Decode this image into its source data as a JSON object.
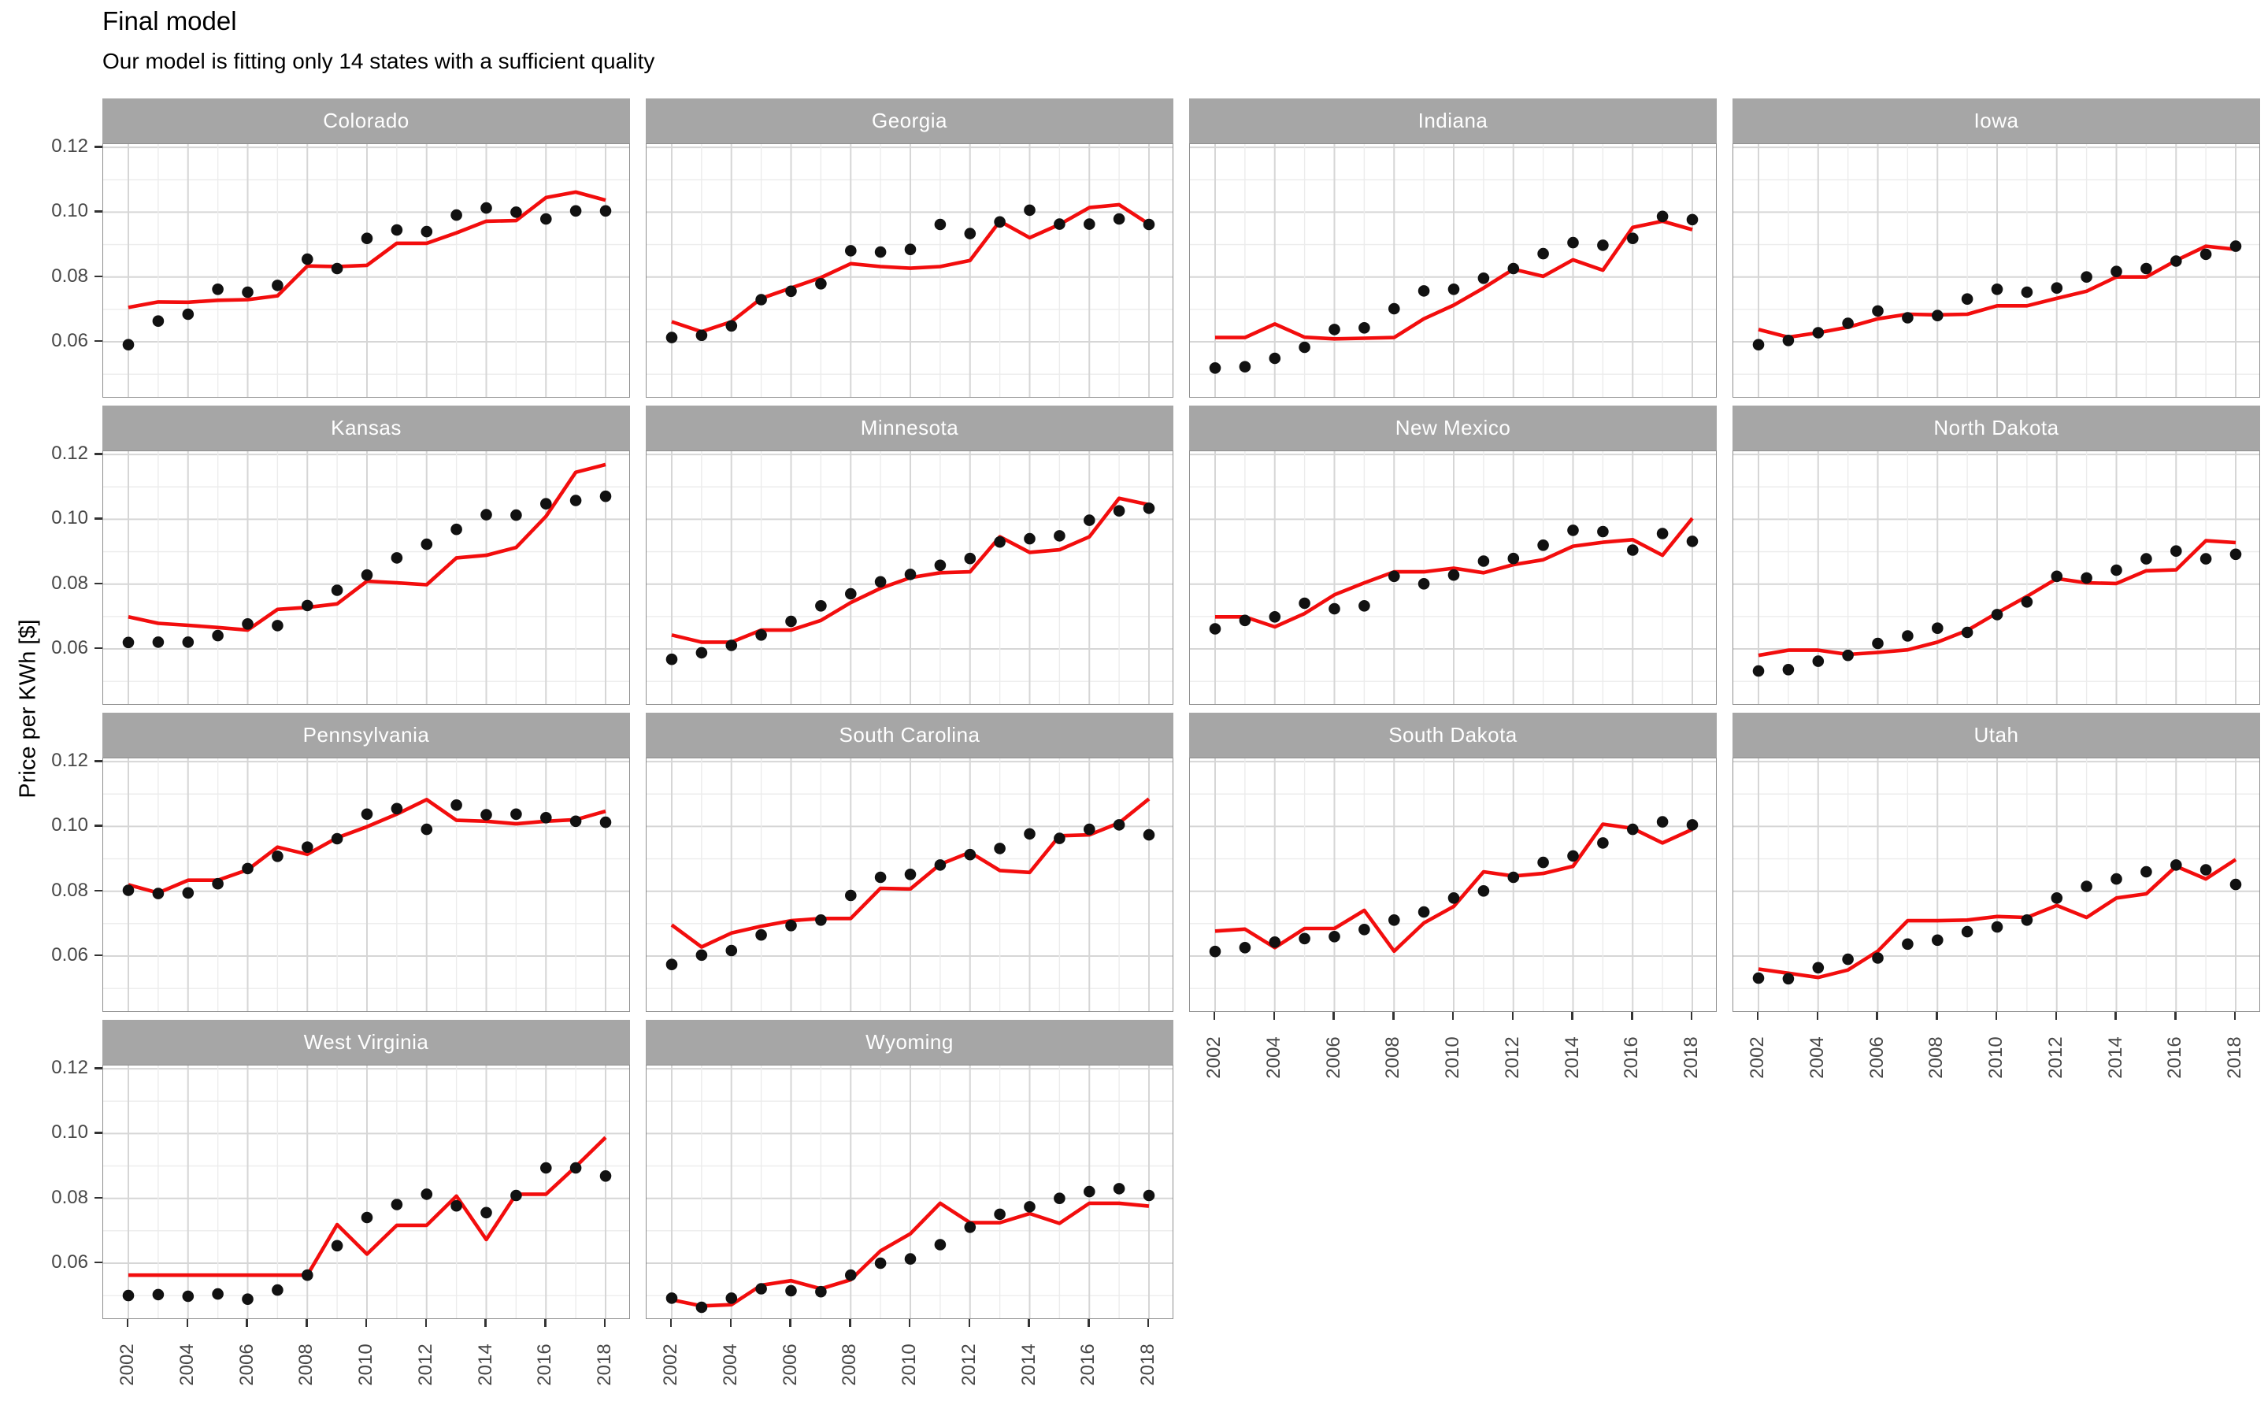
{
  "header": {
    "title": "Final model",
    "subtitle": "Our model is fitting only 14 states with a sufficient quality"
  },
  "axes": {
    "y_title": "Price per KWh [$]",
    "y_ticks": [
      {
        "label": "0.12",
        "value": 0.12
      },
      {
        "label": "0.10",
        "value": 0.1
      },
      {
        "label": "0.08",
        "value": 0.08
      },
      {
        "label": "0.06",
        "value": 0.06
      }
    ],
    "x_ticks": [
      {
        "label": "2002",
        "value": 2002
      },
      {
        "label": "2004",
        "value": 2004
      },
      {
        "label": "2006",
        "value": 2006
      },
      {
        "label": "2008",
        "value": 2008
      },
      {
        "label": "2010",
        "value": 2010
      },
      {
        "label": "2012",
        "value": 2012
      },
      {
        "label": "2014",
        "value": 2014
      },
      {
        "label": "2016",
        "value": 2016
      },
      {
        "label": "2018",
        "value": 2018
      }
    ],
    "y_range": [
      0.0425,
      0.121
    ],
    "x_range": [
      2002,
      2018
    ]
  },
  "colors": {
    "model_line": "#f20d0d",
    "observed_point": "#111111",
    "strip_bg": "#a6a6a6",
    "strip_text": "#ffffff",
    "grid_major": "#d6d6d6",
    "grid_minor": "#ececec",
    "panel_border": "#8f8f8f",
    "tick_mark": "#333333",
    "tick_text": "#474747"
  },
  "chart_data": {
    "type": "line",
    "title": "Final model",
    "subtitle": "Our model is fitting only 14 states with a sufficient quality",
    "ylabel": "Price per KWh [$]",
    "xlabel": "",
    "grid": true,
    "legend_position": "none",
    "ylim": [
      0.0425,
      0.121
    ],
    "x": [
      2002,
      2003,
      2004,
      2005,
      2006,
      2007,
      2008,
      2009,
      2010,
      2011,
      2012,
      2013,
      2014,
      2015,
      2016,
      2017,
      2018
    ],
    "series_meta": [
      {
        "name": "observed price",
        "mark": "point",
        "color": "#111111"
      },
      {
        "name": "model fit",
        "mark": "line",
        "color": "#f20d0d"
      }
    ],
    "facets": [
      {
        "state": "Colorado",
        "observed": [
          0.0591,
          0.0664,
          0.0685,
          0.0762,
          0.0753,
          0.0774,
          0.0855,
          0.0826,
          0.0919,
          0.0945,
          0.094,
          0.0991,
          0.1013,
          0.1,
          0.0979,
          0.1004,
          0.1004
        ],
        "fitted": [
          0.0706,
          0.0723,
          0.0722,
          0.0728,
          0.073,
          0.0742,
          0.0834,
          0.0832,
          0.0836,
          0.0904,
          0.0904,
          0.0936,
          0.0972,
          0.0974,
          0.1045,
          0.1062,
          0.1037
        ]
      },
      {
        "state": "Georgia",
        "observed": [
          0.0613,
          0.062,
          0.0649,
          0.073,
          0.0756,
          0.0779,
          0.0881,
          0.0877,
          0.0885,
          0.0962,
          0.0934,
          0.097,
          0.1006,
          0.0963,
          0.0963,
          0.0979,
          0.0962
        ],
        "fitted": [
          0.0662,
          0.0631,
          0.0662,
          0.0734,
          0.0766,
          0.0798,
          0.0841,
          0.0832,
          0.0827,
          0.0832,
          0.0851,
          0.0972,
          0.0921,
          0.0962,
          0.1014,
          0.1023,
          0.0963
        ]
      },
      {
        "state": "Indiana",
        "observed": [
          0.0519,
          0.0523,
          0.0549,
          0.0583,
          0.0638,
          0.0643,
          0.0702,
          0.0757,
          0.0762,
          0.0796,
          0.0826,
          0.0872,
          0.0906,
          0.0898,
          0.0919,
          0.0987,
          0.0977
        ],
        "fitted": [
          0.0613,
          0.0613,
          0.0655,
          0.0614,
          0.0609,
          0.0611,
          0.0613,
          0.0671,
          0.0713,
          0.0766,
          0.0824,
          0.0802,
          0.0853,
          0.0821,
          0.0953,
          0.0972,
          0.0946
        ]
      },
      {
        "state": "Iowa",
        "observed": [
          0.0591,
          0.0604,
          0.0628,
          0.0657,
          0.0695,
          0.0674,
          0.0681,
          0.0732,
          0.0762,
          0.0753,
          0.0766,
          0.08,
          0.0817,
          0.0826,
          0.0849,
          0.087,
          0.0895
        ],
        "fitted": [
          0.0638,
          0.0614,
          0.0628,
          0.0645,
          0.0671,
          0.0685,
          0.0683,
          0.0685,
          0.0711,
          0.0711,
          0.0734,
          0.0756,
          0.08,
          0.08,
          0.0851,
          0.0895,
          0.0885
        ]
      },
      {
        "state": "Kansas",
        "observed": [
          0.062,
          0.0621,
          0.0621,
          0.0641,
          0.0677,
          0.0672,
          0.0734,
          0.0781,
          0.0828,
          0.0881,
          0.0923,
          0.0969,
          0.1014,
          0.1013,
          0.1048,
          0.1058,
          0.1071
        ],
        "fitted": [
          0.0699,
          0.0679,
          0.0673,
          0.0666,
          0.0658,
          0.0722,
          0.0728,
          0.0739,
          0.0809,
          0.0804,
          0.0798,
          0.0881,
          0.0889,
          0.0913,
          0.1009,
          0.1145,
          0.1169
        ]
      },
      {
        "state": "Minnesota",
        "observed": [
          0.0568,
          0.0588,
          0.0611,
          0.0643,
          0.0685,
          0.0733,
          0.077,
          0.0807,
          0.083,
          0.0858,
          0.0879,
          0.093,
          0.094,
          0.0949,
          0.0997,
          0.1026,
          0.1034
        ],
        "fitted": [
          0.0643,
          0.0621,
          0.0621,
          0.0658,
          0.0658,
          0.0688,
          0.0743,
          0.0787,
          0.082,
          0.0835,
          0.0838,
          0.0946,
          0.0898,
          0.0906,
          0.0946,
          0.1065,
          0.1045
        ]
      },
      {
        "state": "New Mexico",
        "observed": [
          0.0662,
          0.0688,
          0.0699,
          0.0741,
          0.0724,
          0.0733,
          0.0824,
          0.0801,
          0.0828,
          0.0871,
          0.0879,
          0.092,
          0.0966,
          0.0962,
          0.0905,
          0.0956,
          0.0932
        ],
        "fitted": [
          0.0699,
          0.0699,
          0.0668,
          0.0709,
          0.0767,
          0.0804,
          0.0838,
          0.0838,
          0.0849,
          0.0835,
          0.086,
          0.0875,
          0.0917,
          0.0929,
          0.0937,
          0.0889,
          0.1003
        ]
      },
      {
        "state": "North Dakota",
        "observed": [
          0.0532,
          0.0536,
          0.0562,
          0.058,
          0.0617,
          0.064,
          0.0664,
          0.0651,
          0.0706,
          0.0745,
          0.0824,
          0.0819,
          0.0843,
          0.0878,
          0.0902,
          0.0878,
          0.0892
        ],
        "fitted": [
          0.058,
          0.0596,
          0.0596,
          0.0583,
          0.0589,
          0.0597,
          0.0621,
          0.0657,
          0.0711,
          0.0762,
          0.0817,
          0.0804,
          0.0802,
          0.0841,
          0.0844,
          0.0934,
          0.0928
        ]
      },
      {
        "state": "Pennsylvania",
        "observed": [
          0.0803,
          0.0793,
          0.0795,
          0.0823,
          0.087,
          0.0908,
          0.0936,
          0.0962,
          0.1038,
          0.1055,
          0.0991,
          0.1066,
          0.1036,
          0.1038,
          0.1027,
          0.1016,
          0.1013
        ],
        "fitted": [
          0.082,
          0.0795,
          0.0834,
          0.0834,
          0.0866,
          0.0936,
          0.0914,
          0.0965,
          0.0999,
          0.1038,
          0.1083,
          0.1019,
          0.1016,
          0.1008,
          0.1016,
          0.1021,
          0.1047
        ]
      },
      {
        "state": "South Carolina",
        "observed": [
          0.0574,
          0.0603,
          0.0617,
          0.0665,
          0.0694,
          0.0711,
          0.0787,
          0.0843,
          0.0852,
          0.0881,
          0.0913,
          0.0932,
          0.0977,
          0.0963,
          0.0991,
          0.1005,
          0.0974
        ],
        "fitted": [
          0.0696,
          0.0628,
          0.0671,
          0.0692,
          0.0709,
          0.0716,
          0.0716,
          0.0809,
          0.0807,
          0.0883,
          0.092,
          0.0864,
          0.0858,
          0.0971,
          0.0974,
          0.1011,
          0.1085
        ]
      },
      {
        "state": "South Dakota",
        "observed": [
          0.0614,
          0.0626,
          0.0643,
          0.0654,
          0.066,
          0.0682,
          0.0711,
          0.0736,
          0.0779,
          0.0801,
          0.0843,
          0.0889,
          0.0909,
          0.0949,
          0.0991,
          0.1014,
          0.1005
        ],
        "fitted": [
          0.0677,
          0.0683,
          0.0626,
          0.0685,
          0.0685,
          0.0741,
          0.0615,
          0.0702,
          0.0753,
          0.086,
          0.0847,
          0.0855,
          0.0877,
          0.1007,
          0.0994,
          0.0949,
          0.0991
        ]
      },
      {
        "state": "Utah",
        "observed": [
          0.0532,
          0.053,
          0.0564,
          0.059,
          0.0594,
          0.0637,
          0.0649,
          0.0675,
          0.069,
          0.0711,
          0.0779,
          0.0815,
          0.0838,
          0.086,
          0.0881,
          0.0866,
          0.0821
        ],
        "fitted": [
          0.056,
          0.0547,
          0.0534,
          0.0557,
          0.0615,
          0.0709,
          0.0709,
          0.0711,
          0.0722,
          0.0719,
          0.0756,
          0.0719,
          0.0779,
          0.0792,
          0.0877,
          0.0838,
          0.0898
        ]
      },
      {
        "state": "West Virginia",
        "observed": [
          0.05,
          0.0503,
          0.0498,
          0.0505,
          0.0489,
          0.0517,
          0.0563,
          0.0654,
          0.0741,
          0.0781,
          0.0813,
          0.0777,
          0.0756,
          0.0809,
          0.0894,
          0.0894,
          0.0869
        ],
        "fitted": [
          0.0563,
          0.0563,
          0.0563,
          0.0563,
          0.0563,
          0.0563,
          0.0563,
          0.0719,
          0.0628,
          0.0717,
          0.0717,
          0.0807,
          0.0673,
          0.0813,
          0.0813,
          0.0898,
          0.0988
        ]
      },
      {
        "state": "Wyoming",
        "observed": [
          0.0492,
          0.0464,
          0.0492,
          0.0521,
          0.0515,
          0.0512,
          0.0563,
          0.06,
          0.0613,
          0.0657,
          0.0711,
          0.0751,
          0.0774,
          0.08,
          0.0821,
          0.083,
          0.0809
        ],
        "fitted": [
          0.0487,
          0.0468,
          0.0472,
          0.0532,
          0.0546,
          0.0521,
          0.0549,
          0.0638,
          0.0691,
          0.0785,
          0.0725,
          0.0725,
          0.0753,
          0.0723,
          0.0785,
          0.0785,
          0.0776
        ]
      }
    ]
  }
}
